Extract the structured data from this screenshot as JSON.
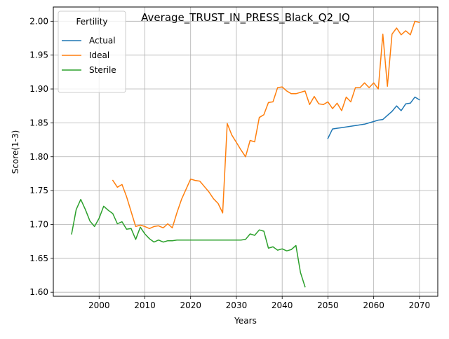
{
  "chart_data": {
    "type": "line",
    "title": "Average_TRUST_IN_PRESS_Black_Q2_IQ",
    "xlabel": "Years",
    "ylabel": "Score(1-3)",
    "xlim": [
      1990,
      2074
    ],
    "ylim": [
      1.594,
      2.021
    ],
    "xticks": [
      2000,
      2010,
      2020,
      2030,
      2040,
      2050,
      2060,
      2070
    ],
    "yticks": [
      1.6,
      1.65,
      1.7,
      1.75,
      1.8,
      1.85,
      1.9,
      1.95,
      2.0
    ],
    "grid": true,
    "legend": {
      "title": "Fertility",
      "placement": "top-left"
    },
    "series": [
      {
        "name": "Actual",
        "color": "#1f77b4",
        "x": [
          2050,
          2051,
          2052,
          2053,
          2054,
          2055,
          2056,
          2057,
          2058,
          2059,
          2060,
          2061,
          2062,
          2063,
          2064,
          2065,
          2066,
          2067,
          2068,
          2069,
          2070
        ],
        "values": [
          1.827,
          1.841,
          1.842,
          1.843,
          1.844,
          1.845,
          1.846,
          1.847,
          1.848,
          1.85,
          1.852,
          1.854,
          1.855,
          1.861,
          1.867,
          1.875,
          1.868,
          1.878,
          1.879,
          1.888,
          1.884
        ]
      },
      {
        "name": "Ideal",
        "color": "#ff7f0e",
        "x": [
          2003,
          2004,
          2005,
          2006,
          2007,
          2008,
          2009,
          2010,
          2011,
          2012,
          2013,
          2014,
          2015,
          2016,
          2017,
          2018,
          2019,
          2020,
          2021,
          2022,
          2023,
          2024,
          2025,
          2026,
          2027,
          2028,
          2029,
          2030,
          2031,
          2032,
          2033,
          2034,
          2035,
          2036,
          2037,
          2038,
          2039,
          2040,
          2041,
          2042,
          2043,
          2044,
          2045,
          2046,
          2047,
          2048,
          2049,
          2050,
          2051,
          2052,
          2053,
          2054,
          2055,
          2056,
          2057,
          2058,
          2059,
          2060,
          2061,
          2062,
          2063,
          2064,
          2065,
          2066,
          2067,
          2068,
          2069,
          2070
        ],
        "values": [
          1.765,
          1.755,
          1.759,
          1.741,
          1.719,
          1.697,
          1.699,
          1.697,
          1.694,
          1.697,
          1.698,
          1.695,
          1.701,
          1.695,
          1.717,
          1.737,
          1.752,
          1.767,
          1.765,
          1.764,
          1.756,
          1.748,
          1.738,
          1.731,
          1.717,
          1.849,
          1.832,
          1.821,
          1.81,
          1.8,
          1.824,
          1.822,
          1.858,
          1.862,
          1.88,
          1.881,
          1.902,
          1.903,
          1.897,
          1.893,
          1.893,
          1.895,
          1.897,
          1.877,
          1.889,
          1.878,
          1.877,
          1.881,
          1.871,
          1.879,
          1.868,
          1.888,
          1.881,
          1.902,
          1.902,
          1.909,
          1.902,
          1.909,
          1.9,
          1.981,
          1.904,
          1.981,
          1.99,
          1.98,
          1.986,
          1.98,
          2.0,
          1.998
        ]
      },
      {
        "name": "Sterile",
        "color": "#2ca02c",
        "x": [
          1994,
          1995,
          1996,
          1997,
          1998,
          1999,
          2000,
          2001,
          2002,
          2003,
          2004,
          2005,
          2006,
          2007,
          2008,
          2009,
          2010,
          2011,
          2012,
          2013,
          2014,
          2015,
          2016,
          2017,
          2018,
          2019,
          2020,
          2021,
          2022,
          2023,
          2024,
          2025,
          2026,
          2027,
          2028,
          2029,
          2030,
          2031,
          2032,
          2033,
          2034,
          2035,
          2036,
          2037,
          2038,
          2039,
          2040,
          2041,
          2042,
          2043,
          2044,
          2045
        ],
        "values": [
          1.686,
          1.722,
          1.737,
          1.722,
          1.705,
          1.697,
          1.709,
          1.727,
          1.721,
          1.716,
          1.701,
          1.704,
          1.693,
          1.694,
          1.678,
          1.696,
          1.686,
          1.679,
          1.674,
          1.677,
          1.674,
          1.676,
          1.676,
          1.677,
          1.677,
          1.677,
          1.677,
          1.677,
          1.677,
          1.677,
          1.677,
          1.677,
          1.677,
          1.677,
          1.677,
          1.677,
          1.677,
          1.677,
          1.678,
          1.686,
          1.684,
          1.692,
          1.69,
          1.665,
          1.667,
          1.662,
          1.664,
          1.661,
          1.663,
          1.669,
          1.629,
          1.608
        ]
      }
    ]
  }
}
